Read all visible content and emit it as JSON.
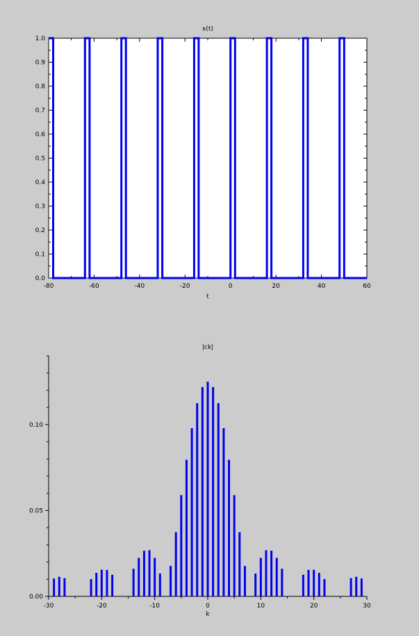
{
  "chart_data": [
    {
      "type": "line",
      "title": "x(t)",
      "xlabel": "t",
      "ylabel": "",
      "xlim": [
        -80,
        60
      ],
      "ylim": [
        0,
        1
      ],
      "xticks": [
        -80,
        -60,
        -40,
        -20,
        0,
        20,
        40,
        60
      ],
      "xtick_labels": [
        "-80",
        "-60",
        "-40",
        "-20",
        "0",
        "20",
        "40",
        "60"
      ],
      "yticks": [
        0,
        0.1,
        0.2,
        0.3,
        0.4,
        0.5,
        0.6,
        0.7,
        0.8,
        0.9,
        1.0
      ],
      "ytick_labels": [
        "0.0",
        "0.1",
        "0.2",
        "0.3",
        "0.4",
        "0.5",
        "0.6",
        "0.7",
        "0.8",
        "0.9",
        "1.0"
      ],
      "color": "#0000ee",
      "period": 16,
      "pulse_width": 2,
      "pulses_high": [
        [
          -80,
          -78
        ],
        [
          -64,
          -62
        ],
        [
          -48,
          -46
        ],
        [
          -32,
          -30
        ],
        [
          -16,
          -14
        ],
        [
          0,
          2
        ],
        [
          16,
          18
        ],
        [
          32,
          34
        ],
        [
          48,
          50
        ]
      ],
      "grid": false
    },
    {
      "type": "bar",
      "title": "|ck|",
      "xlabel": "k",
      "ylabel": "",
      "xlim": [
        -30,
        30
      ],
      "ylim": [
        0,
        0.14
      ],
      "xticks": [
        -30,
        -20,
        -10,
        0,
        10,
        20,
        30
      ],
      "xtick_labels": [
        "-30",
        "-20",
        "-10",
        "0",
        "10",
        "20",
        "30"
      ],
      "yticks": [
        0,
        0.05,
        0.1
      ],
      "ytick_labels": [
        "0.00",
        "0.05",
        "0.10"
      ],
      "color": "#0000ee",
      "x": [
        -30,
        -29,
        -28,
        -27,
        -26,
        -25,
        -24,
        -23,
        -22,
        -21,
        -20,
        -19,
        -18,
        -17,
        -16,
        -15,
        -14,
        -13,
        -12,
        -11,
        -10,
        -9,
        -8,
        -7,
        -6,
        -5,
        -4,
        -3,
        -2,
        -1,
        0,
        1,
        2,
        3,
        4,
        5,
        6,
        7,
        8,
        9,
        10,
        11,
        12,
        13,
        14,
        15,
        16,
        17,
        18,
        19,
        20,
        21,
        22,
        23,
        24,
        25,
        26,
        27,
        28,
        29,
        30
      ],
      "values": [
        0.0,
        0.0104,
        0.0114,
        0.0106,
        0.0,
        0.0,
        0.0,
        0.0,
        0.0101,
        0.0137,
        0.0155,
        0.0154,
        0.0126,
        0.0,
        0.0,
        0.0,
        0.0161,
        0.0224,
        0.0266,
        0.0269,
        0.0224,
        0.0133,
        0.0,
        0.0177,
        0.0374,
        0.0589,
        0.0795,
        0.0979,
        0.1125,
        0.1219,
        0.125,
        0.1219,
        0.1125,
        0.0979,
        0.0795,
        0.0589,
        0.0374,
        0.0177,
        0.0,
        0.0133,
        0.0224,
        0.0269,
        0.0266,
        0.0224,
        0.0161,
        0.0,
        0.0,
        0.0,
        0.0126,
        0.0154,
        0.0155,
        0.0137,
        0.0101,
        0.0,
        0.0,
        0.0,
        0.0,
        0.0106,
        0.0114,
        0.0104,
        0.0
      ],
      "grid": false
    }
  ]
}
